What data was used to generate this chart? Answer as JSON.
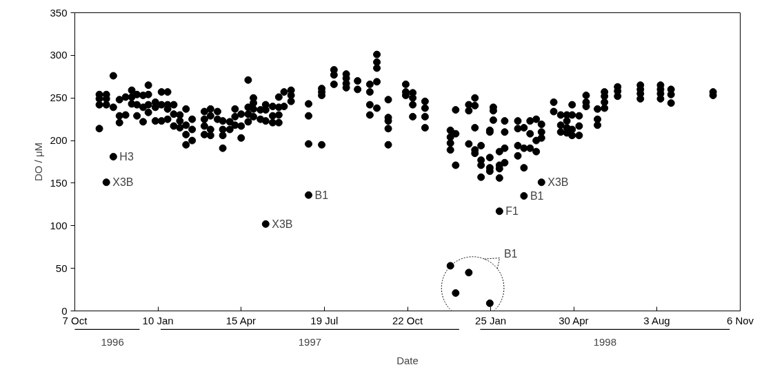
{
  "chart_data": {
    "type": "scatter",
    "xlabel": "Date",
    "ylabel": "DO / μM",
    "x": [
      "1996-11-04",
      "1996-11-04",
      "1996-11-04",
      "1996-11-04",
      "1996-11-12",
      "1996-11-12",
      "1996-11-12",
      "1996-11-12",
      "1996-11-20",
      "1996-11-20",
      "1996-11-20",
      "1996-11-27",
      "1996-11-27",
      "1996-11-27",
      "1996-12-04",
      "1996-12-04",
      "1996-12-11",
      "1996-12-11",
      "1996-12-11",
      "1996-12-17",
      "1996-12-17",
      "1996-12-17",
      "1996-12-24",
      "1996-12-24",
      "1996-12-24",
      "1996-12-30",
      "1996-12-30",
      "1996-12-30",
      "1996-12-30",
      "1997-01-07",
      "1997-01-07",
      "1997-01-07",
      "1997-01-14",
      "1997-01-14",
      "1997-01-14",
      "1997-01-21",
      "1997-01-21",
      "1997-01-21",
      "1997-01-21",
      "1997-01-28",
      "1997-01-28",
      "1997-01-28",
      "1997-02-04",
      "1997-02-04",
      "1997-02-04",
      "1997-02-11",
      "1997-02-11",
      "1997-02-11",
      "1997-02-11",
      "1997-02-18",
      "1997-02-18",
      "1997-02-18",
      "1997-03-04",
      "1997-03-04",
      "1997-03-04",
      "1997-03-04",
      "1997-03-11",
      "1997-03-11",
      "1997-03-11",
      "1997-03-11",
      "1997-03-19",
      "1997-03-19",
      "1997-03-25",
      "1997-03-25",
      "1997-03-25",
      "1997-03-25",
      "1997-04-02",
      "1997-04-02",
      "1997-04-08",
      "1997-04-08",
      "1997-04-08",
      "1997-04-15",
      "1997-04-15",
      "1997-04-15",
      "1997-04-23",
      "1997-04-23",
      "1997-04-23",
      "1997-04-23",
      "1997-04-29",
      "1997-04-29",
      "1997-04-29",
      "1997-04-29",
      "1997-05-07",
      "1997-05-07",
      "1997-05-13",
      "1997-05-13",
      "1997-05-13",
      "1997-05-13",
      "1997-05-21",
      "1997-05-21",
      "1997-05-21",
      "1997-05-28",
      "1997-05-28",
      "1997-05-28",
      "1997-05-28",
      "1997-06-03",
      "1997-06-03",
      "1997-06-11",
      "1997-06-11",
      "1997-06-11",
      "1997-07-01",
      "1997-07-01",
      "1997-07-01",
      "1997-07-01",
      "1997-07-16",
      "1997-07-16",
      "1997-07-16",
      "1997-07-16",
      "1997-07-30",
      "1997-07-30",
      "1997-07-30",
      "1997-08-13",
      "1997-08-13",
      "1997-08-13",
      "1997-08-13",
      "1997-08-26",
      "1997-08-26",
      "1997-09-09",
      "1997-09-09",
      "1997-09-09",
      "1997-09-09",
      "1997-09-17",
      "1997-09-17",
      "1997-09-17",
      "1997-09-17",
      "1997-09-17",
      "1997-09-30",
      "1997-09-30",
      "1997-09-30",
      "1997-09-30",
      "1997-09-30",
      "1997-10-20",
      "1997-10-20",
      "1997-10-20",
      "1997-10-28",
      "1997-10-28",
      "1997-10-28",
      "1997-10-28",
      "1997-11-11",
      "1997-11-11",
      "1997-11-11",
      "1997-11-11",
      "1997-12-10",
      "1997-12-10",
      "1997-12-10",
      "1997-12-10",
      "1997-12-10",
      "1997-12-16",
      "1997-12-16",
      "1997-12-16",
      "1997-12-16",
      "1997-12-31",
      "1997-12-31",
      "1997-12-31",
      "1997-12-31",
      "1998-01-07",
      "1998-01-07",
      "1998-01-07",
      "1998-01-07",
      "1998-01-07",
      "1998-01-14",
      "1998-01-14",
      "1998-01-14",
      "1998-01-14",
      "1998-01-24",
      "1998-01-24",
      "1998-01-24",
      "1998-01-24",
      "1998-01-24",
      "1998-01-24",
      "1998-01-28",
      "1998-01-28",
      "1998-01-28",
      "1998-02-04",
      "1998-02-04",
      "1998-02-04",
      "1998-02-04",
      "1998-02-04",
      "1998-02-10",
      "1998-02-10",
      "1998-02-10",
      "1998-02-10",
      "1998-02-25",
      "1998-02-25",
      "1998-02-25",
      "1998-02-25",
      "1998-03-04",
      "1998-03-04",
      "1998-03-04",
      "1998-03-04",
      "1998-03-11",
      "1998-03-11",
      "1998-03-11",
      "1998-03-18",
      "1998-03-18",
      "1998-03-18",
      "1998-03-24",
      "1998-03-24",
      "1998-03-24",
      "1998-03-24",
      "1998-04-07",
      "1998-04-07",
      "1998-04-15",
      "1998-04-15",
      "1998-04-15",
      "1998-04-22",
      "1998-04-22",
      "1998-04-22",
      "1998-04-22",
      "1998-04-28",
      "1998-04-28",
      "1998-04-28",
      "1998-04-28",
      "1998-05-06",
      "1998-05-06",
      "1998-05-06",
      "1998-05-14",
      "1998-05-14",
      "1998-05-14",
      "1998-05-27",
      "1998-05-27",
      "1998-05-27",
      "1998-06-04",
      "1998-06-04",
      "1998-06-04",
      "1998-06-04",
      "1998-06-19",
      "1998-06-19",
      "1998-06-19",
      "1998-07-15",
      "1998-07-15",
      "1998-07-15",
      "1998-07-15",
      "1998-08-07",
      "1998-08-07",
      "1998-08-07",
      "1998-08-07",
      "1998-08-19",
      "1998-08-19",
      "1998-08-19",
      "1998-10-06",
      "1998-10-06"
    ],
    "values": [
      254,
      249,
      242,
      214,
      254,
      249,
      242,
      151,
      276,
      239,
      181,
      248,
      229,
      221,
      251,
      230,
      259,
      251,
      243,
      254,
      242,
      229,
      253,
      239,
      222,
      265,
      254,
      242,
      233,
      245,
      239,
      223,
      257,
      242,
      223,
      257,
      242,
      237,
      225,
      242,
      231,
      217,
      230,
      223,
      215,
      237,
      218,
      207,
      195,
      225,
      213,
      200,
      234,
      225,
      217,
      207,
      237,
      229,
      213,
      206,
      234,
      225,
      223,
      213,
      206,
      191,
      222,
      213,
      237,
      228,
      218,
      231,
      217,
      203,
      271,
      239,
      231,
      222,
      250,
      244,
      237,
      228,
      236,
      225,
      242,
      236,
      223,
      102,
      240,
      229,
      221,
      251,
      239,
      230,
      221,
      257,
      240,
      259,
      253,
      246,
      243,
      229,
      196,
      136,
      261,
      257,
      253,
      195,
      283,
      277,
      266,
      278,
      273,
      267,
      262,
      270,
      260,
      266,
      257,
      242,
      230,
      301,
      292,
      285,
      269,
      238,
      248,
      227,
      223,
      214,
      195,
      266,
      257,
      253,
      256,
      250,
      242,
      228,
      246,
      238,
      228,
      215,
      212,
      204,
      197,
      189,
      53,
      236,
      208,
      171,
      21,
      242,
      235,
      196,
      45,
      250,
      241,
      215,
      189,
      185,
      194,
      177,
      171,
      157,
      212,
      210,
      180,
      168,
      164,
      9,
      239,
      235,
      224,
      187,
      171,
      167,
      156,
      117,
      223,
      210,
      191,
      174,
      223,
      214,
      194,
      182,
      215,
      191,
      168,
      135,
      223,
      208,
      191,
      225,
      200,
      187,
      219,
      210,
      203,
      151,
      245,
      234,
      230,
      218,
      210,
      230,
      223,
      215,
      209,
      242,
      230,
      213,
      206,
      229,
      217,
      206,
      253,
      245,
      240,
      237,
      225,
      218,
      257,
      252,
      245,
      238,
      263,
      258,
      252,
      265,
      260,
      255,
      249,
      265,
      260,
      255,
      249,
      260,
      254,
      244,
      257,
      253
    ],
    "color": "#000000",
    "marker": "circle",
    "xlim": [
      "1996-10-07",
      "1998-11-06"
    ],
    "xticks": [
      {
        "value": "1996-10-07",
        "label": "7 Oct"
      },
      {
        "value": "1997-01-10",
        "label": "10 Jan"
      },
      {
        "value": "1997-04-15",
        "label": "15 Apr"
      },
      {
        "value": "1997-07-19",
        "label": "19 Jul"
      },
      {
        "value": "1997-10-22",
        "label": "22 Oct"
      },
      {
        "value": "1998-01-25",
        "label": "25 Jan"
      },
      {
        "value": "1998-04-30",
        "label": "30 Apr"
      },
      {
        "value": "1998-08-03",
        "label": "3 Aug"
      },
      {
        "value": "1998-11-06",
        "label": "6 Nov"
      }
    ],
    "ylim": [
      0,
      350
    ],
    "yticks": [
      0,
      50,
      100,
      150,
      200,
      250,
      300,
      350
    ],
    "annotations": [
      {
        "text": "H3",
        "x": "1996-11-20",
        "y": 181
      },
      {
        "text": "X3B",
        "x": "1996-11-12",
        "y": 151
      },
      {
        "text": "X3B",
        "x": "1997-05-13",
        "y": 102
      },
      {
        "text": "B1",
        "x": "1997-07-01",
        "y": 136
      },
      {
        "text": "F1",
        "x": "1998-02-04",
        "y": 117
      },
      {
        "text": "B1",
        "x": "1998-03-04",
        "y": 135
      },
      {
        "text": "X3B",
        "x": "1998-03-24",
        "y": 151
      },
      "B1",
      "1996",
      "1997",
      "1998"
    ]
  }
}
